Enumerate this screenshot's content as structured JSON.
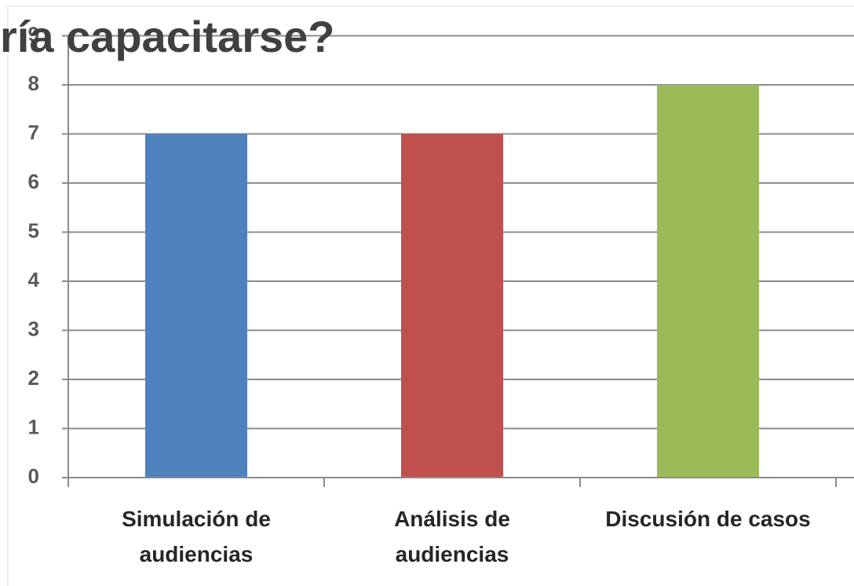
{
  "chart_data": {
    "type": "bar",
    "title": "ría capacitarse?",
    "categories": [
      "Simulación de audiencias",
      "Análisis de audiencias",
      "Discusión de casos"
    ],
    "values": [
      7,
      7,
      8
    ],
    "colors": [
      "#4f81bd",
      "#c0504d",
      "#9bbb59"
    ],
    "ylim": [
      0,
      9
    ],
    "yticks": [
      0,
      1,
      2,
      3,
      4,
      5,
      6,
      7,
      8,
      9
    ],
    "grid": true
  }
}
